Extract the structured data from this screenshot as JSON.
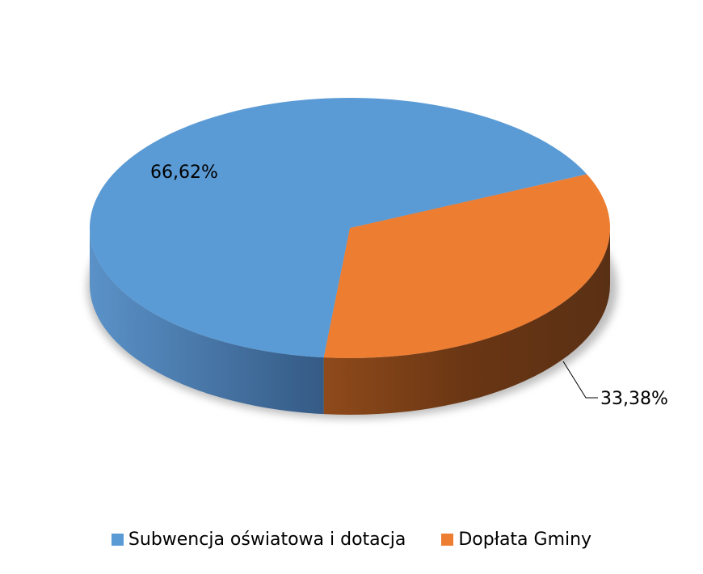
{
  "chart_data": {
    "type": "pie",
    "style": "3d",
    "categories": [
      "Subwencja oświatowa i dotacja",
      "Dopłata Gminy"
    ],
    "values": [
      66.62,
      33.38
    ],
    "labels": [
      "66,62%",
      "33,38%"
    ],
    "colors": [
      "#5b9bd5",
      "#ed7d31"
    ],
    "legend": "bottom"
  }
}
